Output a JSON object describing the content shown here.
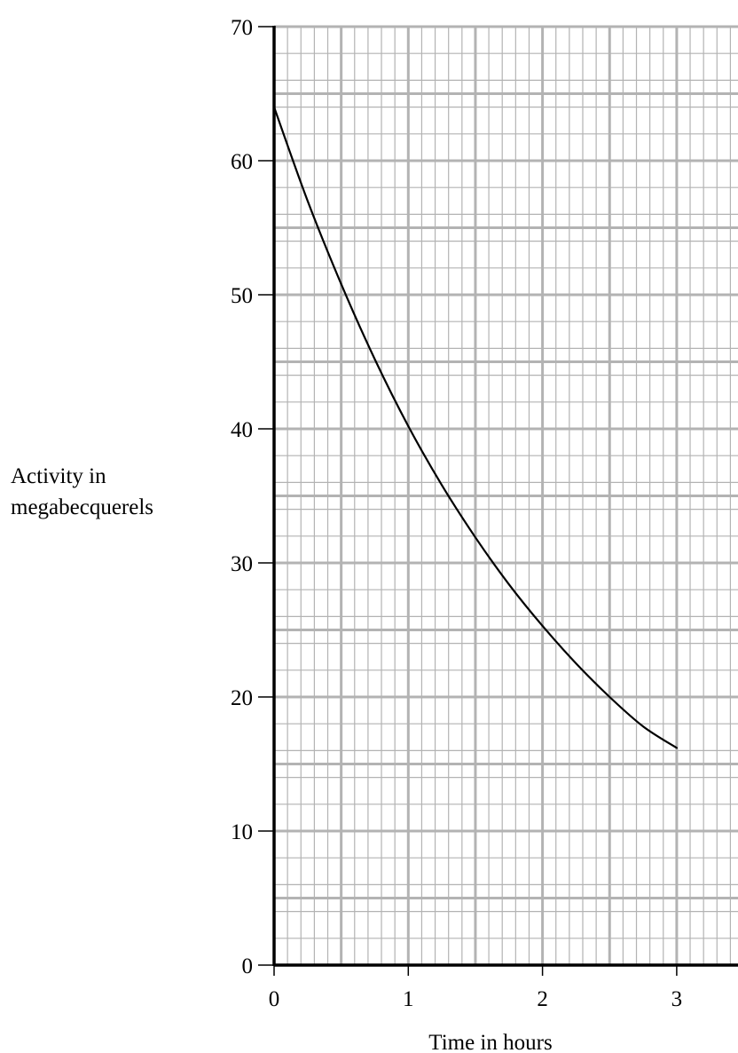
{
  "chart_data": {
    "type": "line",
    "title": "",
    "xlabel": "Time in hours",
    "ylabel_lines": [
      "Activity in",
      "megabecquerels"
    ],
    "xlim": [
      0,
      3.5
    ],
    "ylim": [
      0,
      70
    ],
    "x_ticks": [
      0,
      1,
      2,
      3
    ],
    "y_ticks": [
      0,
      10,
      20,
      30,
      40,
      50,
      60,
      70
    ],
    "grid": {
      "major": true,
      "minor": true
    },
    "colors": {
      "grid": "#b3b3b3",
      "axis": "#000000",
      "line": "#000000"
    },
    "series": [
      {
        "x": [
          0,
          0.25,
          0.5,
          0.75,
          1.0,
          1.25,
          1.5,
          1.75,
          2.0,
          2.25,
          2.5,
          2.75,
          3.0
        ],
        "values": [
          64,
          57,
          50.8,
          45.2,
          40.2,
          35.8,
          31.9,
          28.4,
          25.3,
          22.5,
          20.0,
          17.8,
          16.2
        ]
      }
    ]
  }
}
